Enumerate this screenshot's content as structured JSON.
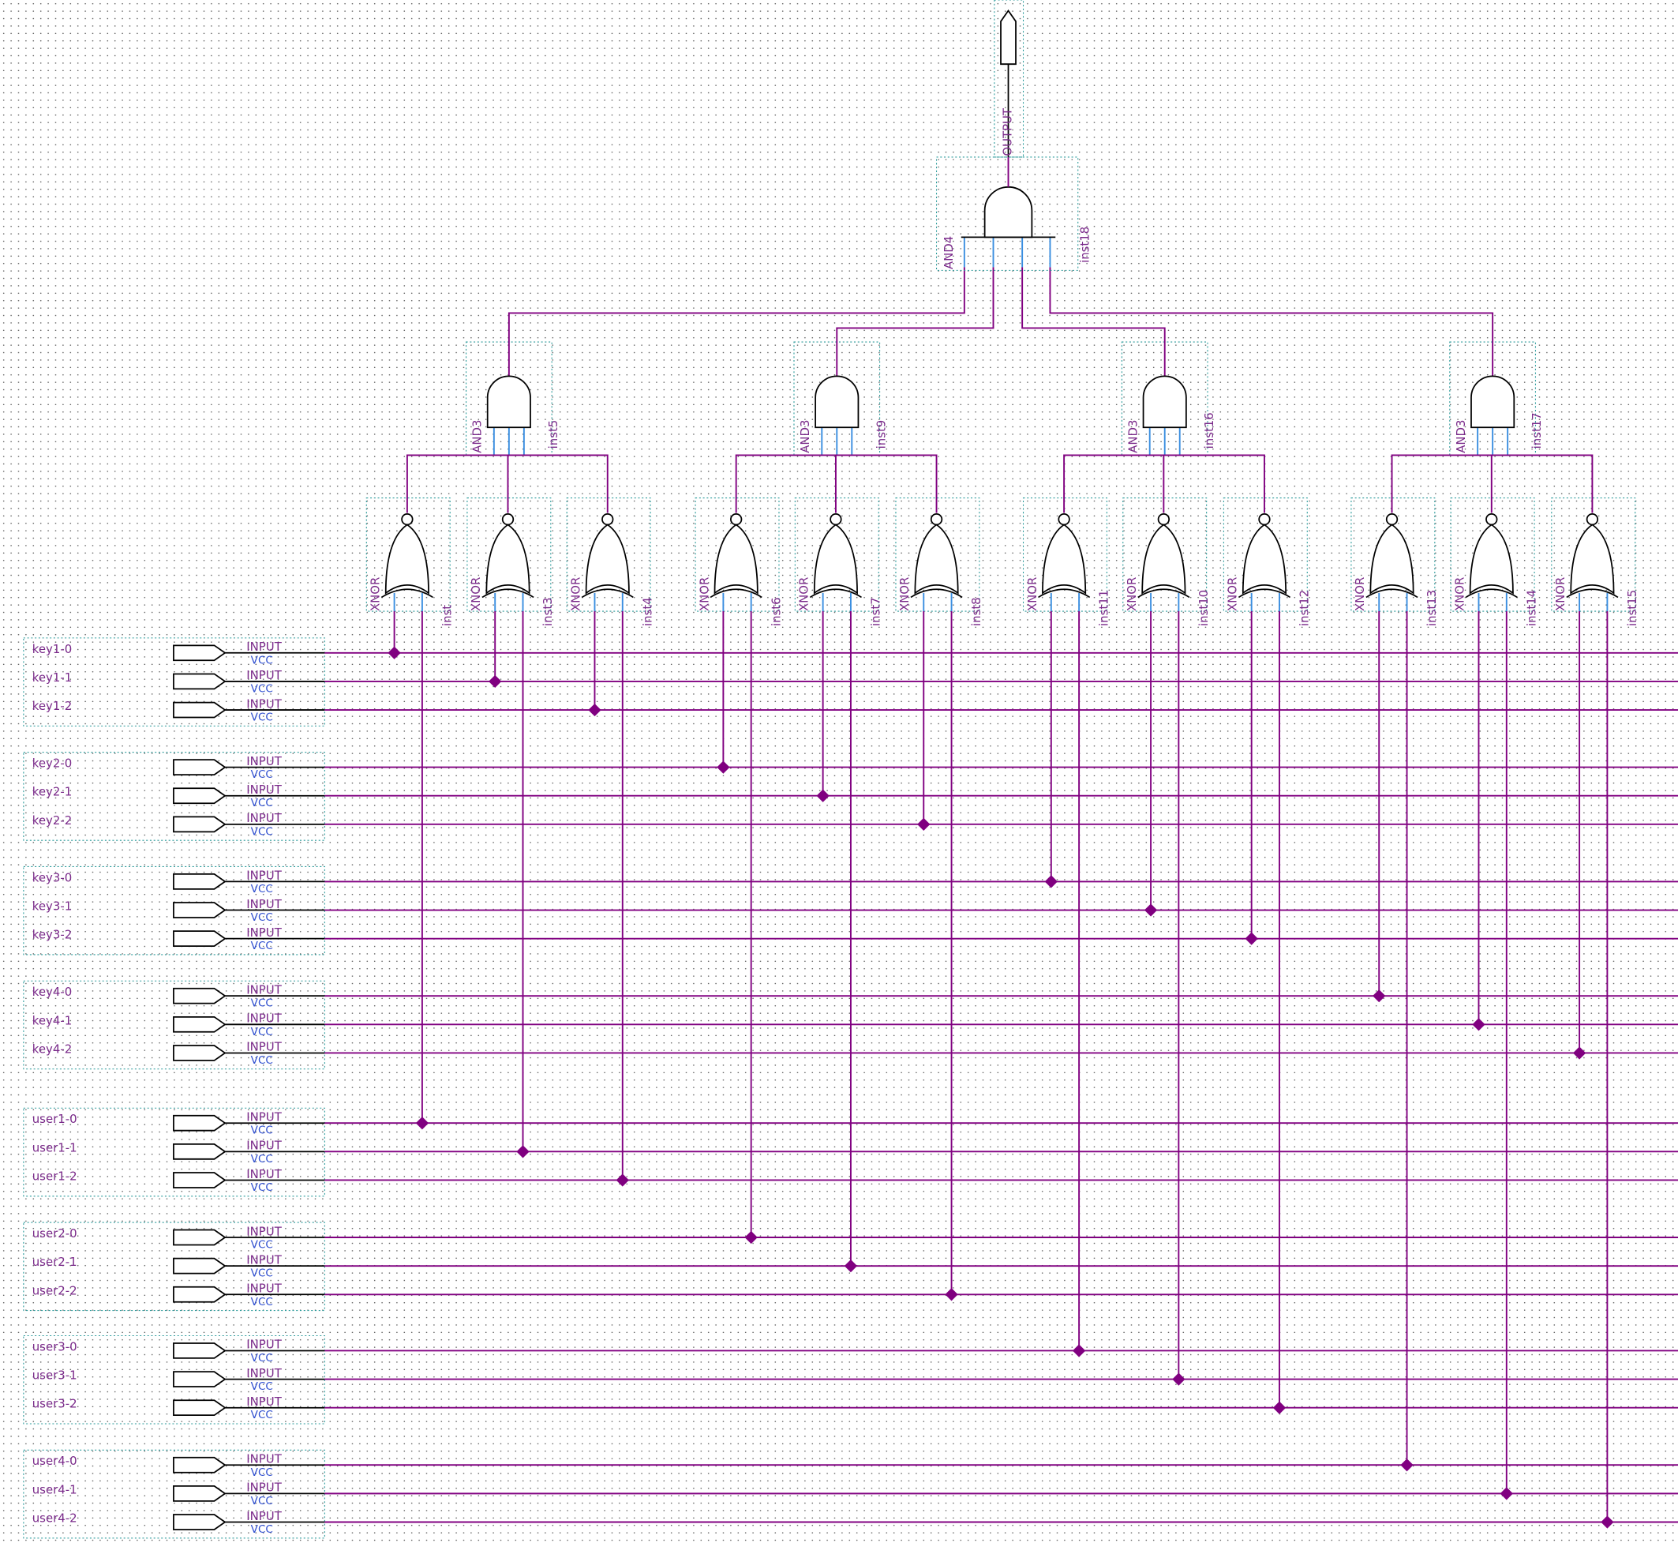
{
  "inputs": [
    {
      "name": "key1-0",
      "type": "INPUT",
      "default": "VCC"
    },
    {
      "name": "key1-1",
      "type": "INPUT",
      "default": "VCC"
    },
    {
      "name": "key1-2",
      "type": "INPUT",
      "default": "VCC"
    },
    {
      "name": "key2-0",
      "type": "INPUT",
      "default": "VCC"
    },
    {
      "name": "key2-1",
      "type": "INPUT",
      "default": "VCC"
    },
    {
      "name": "key2-2",
      "type": "INPUT",
      "default": "VCC"
    },
    {
      "name": "key3-0",
      "type": "INPUT",
      "default": "VCC"
    },
    {
      "name": "key3-1",
      "type": "INPUT",
      "default": "VCC"
    },
    {
      "name": "key3-2",
      "type": "INPUT",
      "default": "VCC"
    },
    {
      "name": "key4-0",
      "type": "INPUT",
      "default": "VCC"
    },
    {
      "name": "key4-1",
      "type": "INPUT",
      "default": "VCC"
    },
    {
      "name": "key4-2",
      "type": "INPUT",
      "default": "VCC"
    },
    {
      "name": "user1-0",
      "type": "INPUT",
      "default": "VCC"
    },
    {
      "name": "user1-1",
      "type": "INPUT",
      "default": "VCC"
    },
    {
      "name": "user1-2",
      "type": "INPUT",
      "default": "VCC"
    },
    {
      "name": "user2-0",
      "type": "INPUT",
      "default": "VCC"
    },
    {
      "name": "user2-1",
      "type": "INPUT",
      "default": "VCC"
    },
    {
      "name": "user2-2",
      "type": "INPUT",
      "default": "VCC"
    },
    {
      "name": "user3-0",
      "type": "INPUT",
      "default": "VCC"
    },
    {
      "name": "user3-1",
      "type": "INPUT",
      "default": "VCC"
    },
    {
      "name": "user3-2",
      "type": "INPUT",
      "default": "VCC"
    },
    {
      "name": "user4-0",
      "type": "INPUT",
      "default": "VCC"
    },
    {
      "name": "user4-1",
      "type": "INPUT",
      "default": "VCC"
    },
    {
      "name": "user4-2",
      "type": "INPUT",
      "default": "VCC"
    }
  ],
  "xnor_gates": [
    {
      "type": "XNOR",
      "name": "inst"
    },
    {
      "type": "XNOR",
      "name": "inst3"
    },
    {
      "type": "XNOR",
      "name": "inst4"
    },
    {
      "type": "XNOR",
      "name": "inst6"
    },
    {
      "type": "XNOR",
      "name": "inst7"
    },
    {
      "type": "XNOR",
      "name": "inst8"
    },
    {
      "type": "XNOR",
      "name": "inst11"
    },
    {
      "type": "XNOR",
      "name": "inst10"
    },
    {
      "type": "XNOR",
      "name": "inst12"
    },
    {
      "type": "XNOR",
      "name": "inst13"
    },
    {
      "type": "XNOR",
      "name": "inst14"
    },
    {
      "type": "XNOR",
      "name": "inst15"
    }
  ],
  "and3_gates": [
    {
      "type": "AND3",
      "name": "inst5"
    },
    {
      "type": "AND3",
      "name": "inst9"
    },
    {
      "type": "AND3",
      "name": "inst16"
    },
    {
      "type": "AND3",
      "name": "inst17"
    }
  ],
  "and4_gate": {
    "type": "AND4",
    "name": "inst18"
  },
  "output": {
    "type": "OUTPUT"
  }
}
